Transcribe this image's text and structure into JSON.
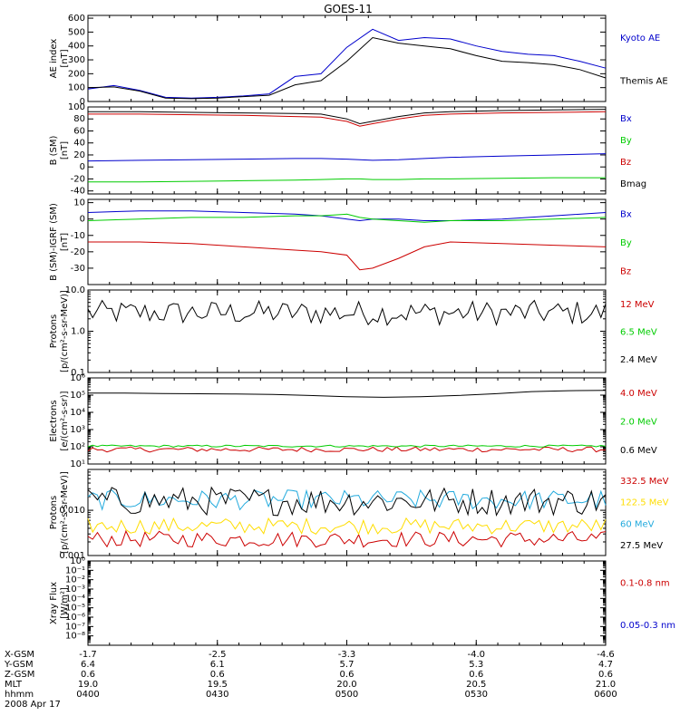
{
  "title": "GOES-11",
  "chart_data": [
    {
      "type": "line",
      "ylabel": [
        "AE index",
        "[nT]"
      ],
      "ylim": [
        0,
        620
      ],
      "yticks": [
        "600",
        "500",
        "400",
        "300",
        "200",
        "100",
        "0"
      ],
      "yticks_v": [
        600,
        500,
        400,
        300,
        200,
        100,
        0
      ],
      "x_hours": [
        4.0,
        4.1,
        4.2,
        4.3,
        4.4,
        4.5,
        4.6,
        4.7,
        4.8,
        4.9,
        5.0,
        5.1,
        5.2,
        5.3,
        5.4,
        5.5,
        5.6,
        5.7,
        5.8,
        5.9,
        6.0
      ],
      "series": [
        {
          "name": "Kyoto AE",
          "color": "#0000cc",
          "values": [
            90,
            115,
            80,
            30,
            25,
            30,
            40,
            55,
            180,
            200,
            390,
            520,
            440,
            460,
            450,
            400,
            360,
            340,
            330,
            290,
            240
          ]
        },
        {
          "name": "Themis AE",
          "color": "#000000",
          "values": [
            100,
            105,
            75,
            25,
            20,
            25,
            35,
            45,
            120,
            150,
            290,
            460,
            420,
            400,
            380,
            330,
            290,
            280,
            265,
            230,
            170
          ]
        }
      ]
    },
    {
      "type": "line",
      "ylabel": [
        "B (SM)",
        "[nT]"
      ],
      "ylim": [
        -45,
        100
      ],
      "yticks": [
        "100",
        "80",
        "60",
        "40",
        "20",
        "0",
        "-20",
        "-40"
      ],
      "yticks_v": [
        100,
        80,
        60,
        40,
        20,
        0,
        -20,
        -40
      ],
      "x_hours": [
        4.0,
        4.2,
        4.4,
        4.6,
        4.8,
        4.9,
        5.0,
        5.05,
        5.1,
        5.2,
        5.3,
        5.4,
        5.6,
        5.8,
        6.0
      ],
      "series": [
        {
          "name": "Bx",
          "color": "#0000cc",
          "values": [
            10,
            11,
            12,
            13,
            14,
            14,
            13,
            12,
            11,
            12,
            14,
            16,
            18,
            20,
            22
          ]
        },
        {
          "name": "By",
          "color": "#00cc00",
          "values": [
            -25,
            -25,
            -24,
            -23,
            -22,
            -21,
            -20,
            -20,
            -21,
            -21,
            -20,
            -20,
            -19,
            -18,
            -18
          ]
        },
        {
          "name": "Bz",
          "color": "#cc0000",
          "values": [
            88,
            88,
            87,
            86,
            84,
            83,
            76,
            68,
            72,
            80,
            86,
            88,
            90,
            91,
            92
          ]
        },
        {
          "name": "Bmag",
          "color": "#000000",
          "values": [
            92,
            92,
            91,
            90,
            89,
            88,
            80,
            72,
            76,
            84,
            90,
            92,
            94,
            95,
            96
          ]
        }
      ]
    },
    {
      "type": "line",
      "ylabel": [
        "B (SM)-IGRF (SM)",
        "[nT]"
      ],
      "ylim": [
        -40,
        12
      ],
      "yticks": [
        "10",
        "0",
        "-10",
        "-20",
        "-30"
      ],
      "yticks_v": [
        10,
        0,
        -10,
        -20,
        -30
      ],
      "x_hours": [
        4.0,
        4.2,
        4.4,
        4.6,
        4.8,
        4.9,
        5.0,
        5.05,
        5.1,
        5.2,
        5.3,
        5.4,
        5.6,
        5.8,
        6.0
      ],
      "series": [
        {
          "name": "Bx",
          "color": "#0000cc",
          "values": [
            4,
            5,
            5,
            4,
            3,
            2,
            0,
            -1,
            0,
            0,
            -1,
            -1,
            0,
            2,
            4
          ]
        },
        {
          "name": "By",
          "color": "#00cc00",
          "values": [
            -1,
            0,
            1,
            1,
            2,
            2,
            3,
            1,
            0,
            -1,
            -2,
            -1,
            -1,
            0,
            1
          ]
        },
        {
          "name": "Bz",
          "color": "#cc0000",
          "values": [
            -14,
            -14,
            -15,
            -17,
            -19,
            -20,
            -22,
            -31,
            -30,
            -24,
            -17,
            -14,
            -15,
            -16,
            -17
          ]
        }
      ]
    },
    {
      "type": "line",
      "ylog": true,
      "ylabel": [
        "Protons",
        "[p/(cm²-s-sr-MeV)]"
      ],
      "ylim": [
        0.1,
        10
      ],
      "yticks": [
        "10.0",
        "1.0",
        "0.1"
      ],
      "yticks_v": [
        10,
        1,
        0.1
      ],
      "series": [
        {
          "name": "12 MeV",
          "color": "#cc0000"
        },
        {
          "name": "6.5 MeV",
          "color": "#00cc00"
        },
        {
          "name": "2.4 MeV",
          "color": "#000000",
          "center": 2.8,
          "spread": 0.3
        }
      ]
    },
    {
      "type": "line",
      "ylog": true,
      "ylabel": [
        "Electrons",
        "[e/(cm²-s-sr)]"
      ],
      "ylim": [
        10,
        1000000
      ],
      "yticks": [
        "10⁶",
        "10⁵",
        "10⁴",
        "10³",
        "10²",
        "10¹"
      ],
      "yticks_v": [
        1000000,
        100000,
        10000,
        1000,
        100,
        10
      ],
      "series": [
        {
          "name": "4.0 MeV",
          "color": "#cc0000",
          "center": 70,
          "spread": 0.15
        },
        {
          "name": "2.0 MeV",
          "color": "#00cc00",
          "center": 110,
          "spread": 0.06
        },
        {
          "name": "0.6 MeV",
          "color": "#000000",
          "values": [
            130000,
            130000,
            125000,
            120000,
            115000,
            110000,
            95000,
            80000,
            75000,
            80000,
            95000,
            120000,
            160000,
            180000,
            190000
          ]
        }
      ]
    },
    {
      "type": "line",
      "ylog": true,
      "ylabel": [
        "Protons",
        "[p/(cm²-s-sr-MeV)]"
      ],
      "ylim": [
        0.001,
        0.08
      ],
      "yticks": [
        "0.010",
        "0.001"
      ],
      "yticks_v": [
        0.01,
        0.001
      ],
      "series": [
        {
          "name": "332.5 MeV",
          "color": "#cc0000",
          "center": 0.0023,
          "spread": 0.18
        },
        {
          "name": "122.5 MeV",
          "color": "#ffdd00",
          "center": 0.0045,
          "spread": 0.18
        },
        {
          "name": "60 MeV",
          "color": "#22aadd",
          "center": 0.017,
          "spread": 0.22
        },
        {
          "name": "27.5 MeV",
          "color": "#000000",
          "center": 0.016,
          "spread": 0.32
        }
      ]
    },
    {
      "type": "line",
      "ylog": true,
      "ylabel": [
        "Xray Flux",
        "[W/m²]"
      ],
      "ylim": [
        1e-09,
        1
      ],
      "yticks": [
        "10⁰",
        "10⁻¹",
        "10⁻²",
        "10⁻³",
        "10⁻⁴",
        "10⁻⁵",
        "10⁻⁶",
        "10⁻⁷",
        "10⁻⁸"
      ],
      "yticks_v": [
        1,
        0.1,
        0.01,
        0.001,
        0.0001,
        1e-05,
        1e-06,
        1e-07,
        1e-08
      ],
      "series": [
        {
          "name": "0.1-0.8 nm",
          "color": "#cc0000"
        },
        {
          "name": "0.05-0.3 nm",
          "color": "#0000cc"
        }
      ]
    }
  ],
  "xaxis": {
    "rows": [
      {
        "label": "X-GSM",
        "values": [
          "-1.7",
          "-2.5",
          "-3.3",
          "-4.0",
          "-4.6"
        ]
      },
      {
        "label": "Y-GSM",
        "values": [
          "6.4",
          "6.1",
          "5.7",
          "5.3",
          "4.7"
        ]
      },
      {
        "label": "Z-GSM",
        "values": [
          "0.6",
          "0.6",
          "0.6",
          "0.6",
          "0.6"
        ]
      },
      {
        "label": "MLT",
        "values": [
          "19.0",
          "19.5",
          "20.0",
          "20.5",
          "21.0"
        ]
      },
      {
        "label": "hhmm",
        "values": [
          "0400",
          "0430",
          "0500",
          "0530",
          "0600"
        ]
      }
    ],
    "date": "2008 Apr 17",
    "range_hours": [
      4.0,
      6.0
    ]
  }
}
